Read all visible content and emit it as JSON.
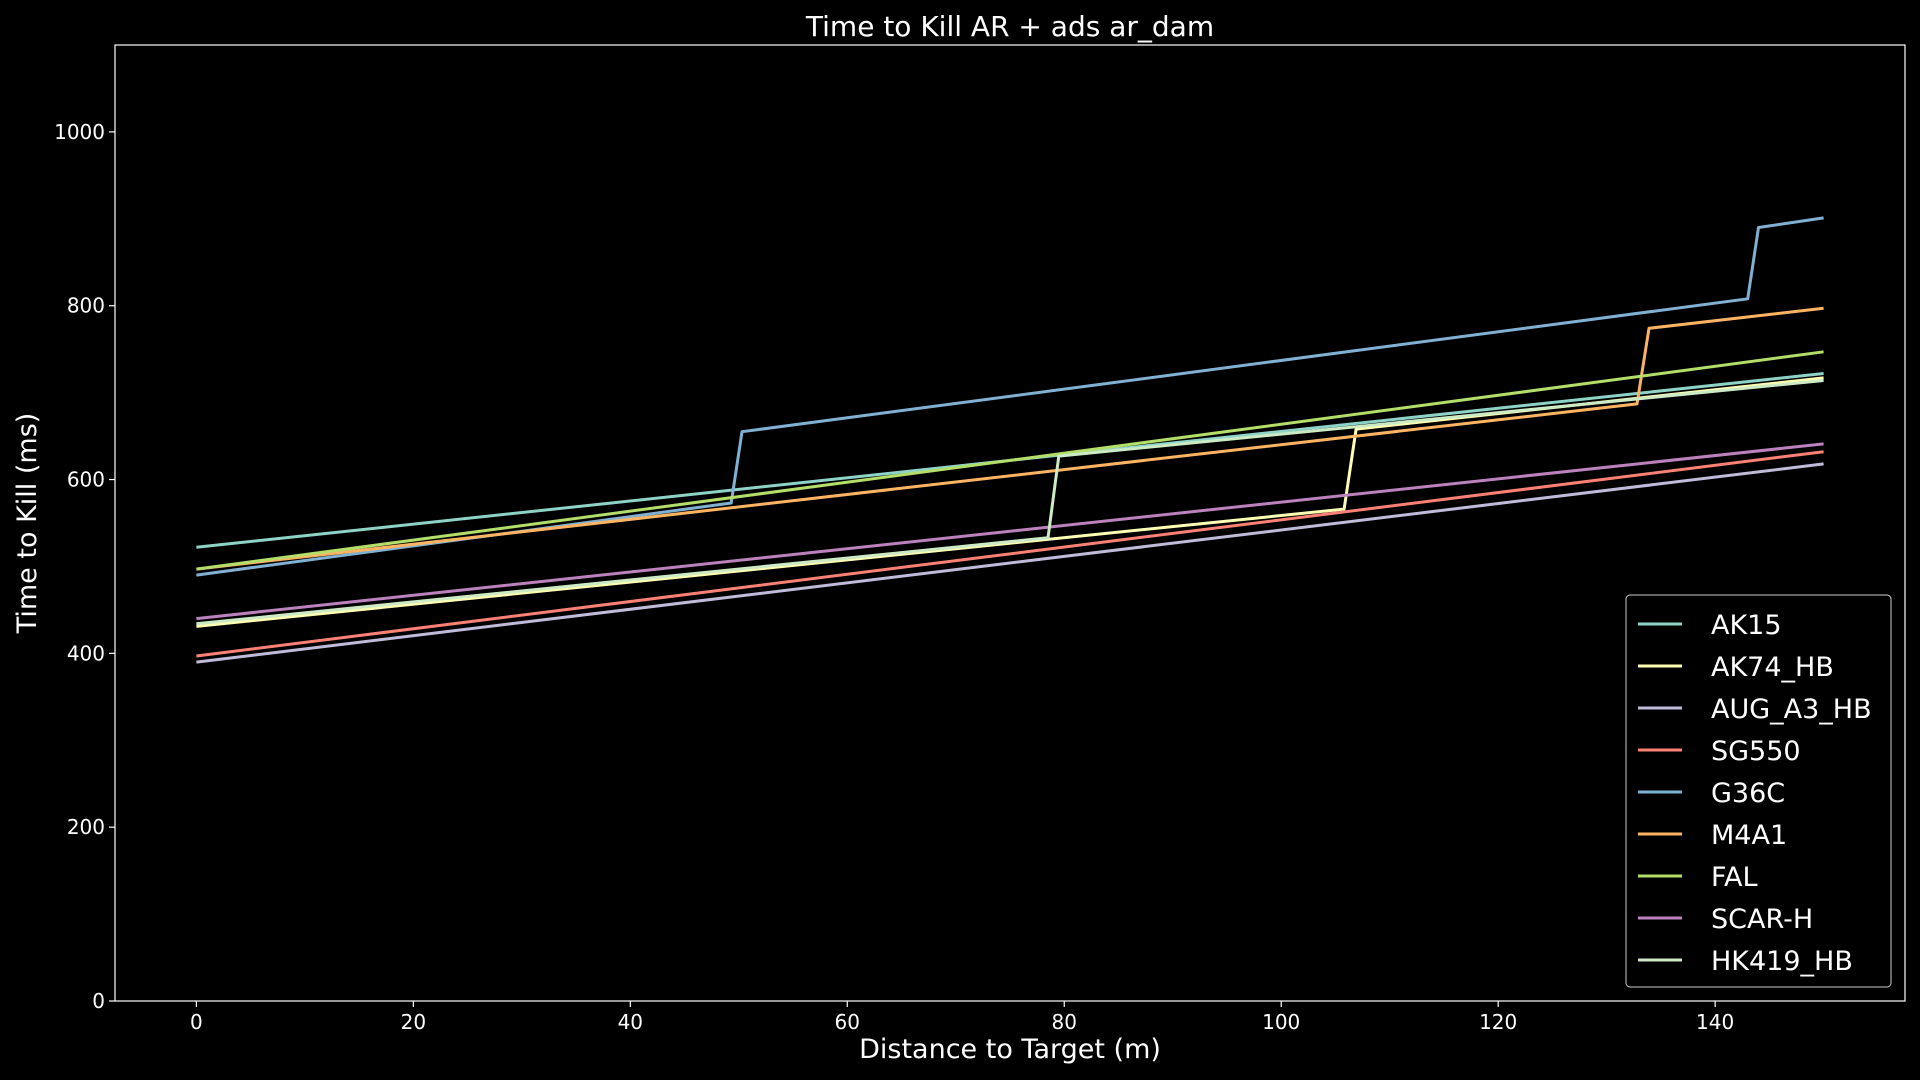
{
  "chart_data": {
    "type": "line",
    "title": "Time to Kill AR + ads ar_dam",
    "xlabel": "Distance to Target (m)",
    "ylabel": "Time to Kill (ms)",
    "xlim": [
      -7.5,
      157.5
    ],
    "ylim": [
      0,
      1100
    ],
    "xticks": [
      0,
      20,
      40,
      60,
      80,
      100,
      120,
      140
    ],
    "yticks": [
      0,
      200,
      400,
      600,
      800,
      1000
    ],
    "grid": false,
    "legend_position": "lower-right",
    "background": "#000000",
    "axis_color": "#ffffff",
    "series": [
      {
        "name": "AK15",
        "color": "#8dd3c7",
        "x": [
          0,
          150
        ],
        "y": [
          522,
          722
        ]
      },
      {
        "name": "AK74_HB",
        "color": "#feffb3",
        "x": [
          0,
          105.8,
          106.9,
          150
        ],
        "y": [
          431,
          566,
          658,
          717
        ]
      },
      {
        "name": "AUG_A3_HB",
        "color": "#bfbbd9",
        "x": [
          0,
          150
        ],
        "y": [
          390,
          618
        ]
      },
      {
        "name": "SG550",
        "color": "#fa8174",
        "x": [
          0,
          150
        ],
        "y": [
          397,
          632
        ]
      },
      {
        "name": "G36C",
        "color": "#81b1d2",
        "x": [
          0,
          49.3,
          50.3,
          143,
          144,
          150
        ],
        "y": [
          490,
          573,
          655,
          808,
          890,
          901
        ]
      },
      {
        "name": "M4A1",
        "color": "#fdb462",
        "x": [
          0,
          132.8,
          133.9,
          150
        ],
        "y": [
          497,
          687,
          774,
          797
        ]
      },
      {
        "name": "FAL",
        "color": "#b3de69",
        "x": [
          0,
          150
        ],
        "y": [
          497,
          747
        ]
      },
      {
        "name": "SCAR-H",
        "color": "#bc82bd",
        "x": [
          0,
          150
        ],
        "y": [
          440,
          641
        ]
      },
      {
        "name": "HK419_HB",
        "color": "#ccebc4",
        "x": [
          0,
          78.5,
          79.5,
          150
        ],
        "y": [
          434,
          533,
          627,
          714
        ]
      }
    ]
  }
}
